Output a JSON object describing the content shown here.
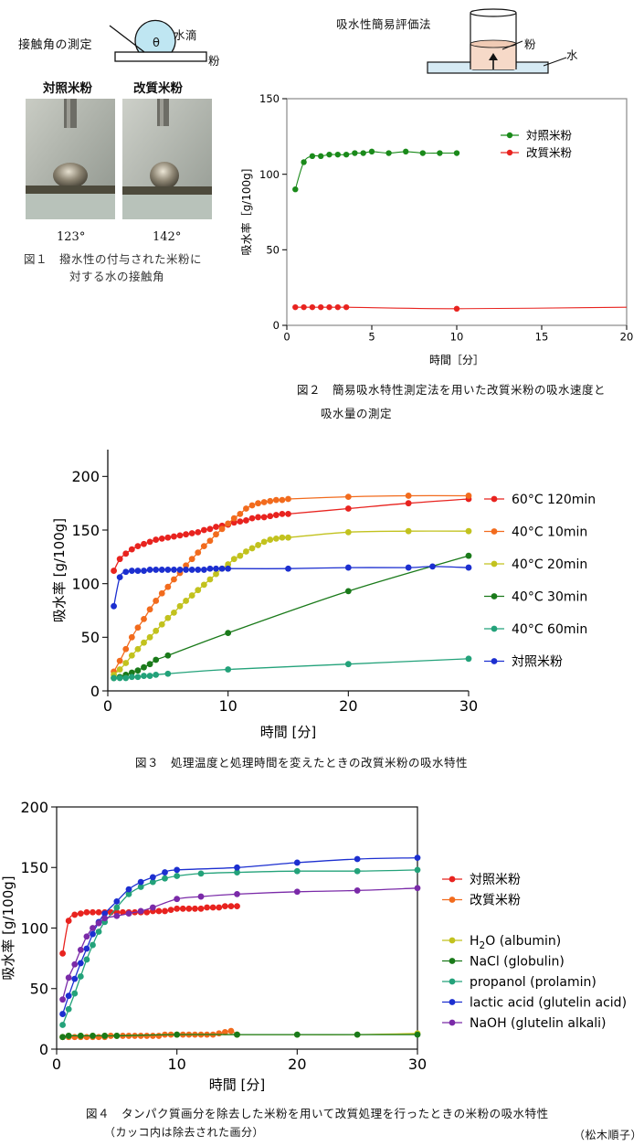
{
  "fig1": {
    "diagram_title": "接触角の測定",
    "droplet_label": "水滴",
    "powder_label": "粉",
    "theta": "θ",
    "photo1_label": "対照米粉",
    "photo2_label": "改質米粉",
    "angle1": "123°",
    "angle2": "142°",
    "caption_line1": "図１　撥水性の付与された米粉に",
    "caption_line2": "対する水の接触角"
  },
  "fig2": {
    "diagram_title": "吸水性簡易評価法",
    "powder_label": "粉",
    "water_label": "水",
    "caption_line1": "図２　簡易吸水特性測定法を用いた改質米粉の吸水速度と",
    "caption_line2": "吸水量の測定"
  },
  "fig3": {
    "caption": "図３　処理温度と処理時間を変えたときの改質米粉の吸水特性"
  },
  "fig4": {
    "caption_line1": "図４　タンパク質画分を除去した米粉を用いて改質処理を行ったときの米粉の吸水特性",
    "caption_line2": "（カッコ内は除去された画分）",
    "author": "（松木順子）"
  },
  "chart_data": [
    {
      "id": "fig2",
      "type": "line",
      "xlabel": "時間［分］",
      "ylabel": "吸水率［g/100g]",
      "xlim": [
        0,
        20
      ],
      "ylim": [
        0,
        150
      ],
      "xticks": [
        0,
        5,
        10,
        15,
        20
      ],
      "yticks": [
        0,
        50,
        100,
        150
      ],
      "legend_position": "top-right",
      "series": [
        {
          "name": "対照米粉",
          "color": "#1a8a1a",
          "x": [
            0.5,
            1,
            1.5,
            2,
            2.5,
            3,
            3.5,
            4,
            4.5,
            5,
            6,
            7,
            8,
            9,
            10
          ],
          "y": [
            90,
            108,
            112,
            112,
            113,
            113,
            113,
            114,
            114,
            115,
            114,
            115,
            114,
            114,
            114
          ]
        },
        {
          "name": "改質米粉",
          "color": "#e8231f",
          "x": [
            0.5,
            1,
            1.5,
            2,
            2.5,
            3,
            3.5,
            10,
            20
          ],
          "y": [
            12,
            12,
            12,
            12,
            12,
            12,
            12,
            11,
            12
          ],
          "markers_until_index": 7
        }
      ]
    },
    {
      "id": "fig3",
      "type": "line",
      "xlabel": "時間 [分]",
      "ylabel": "吸水率 [g/100g]",
      "xlim": [
        0,
        30
      ],
      "ylim": [
        0,
        225
      ],
      "xticks": [
        0,
        10,
        20,
        30
      ],
      "yticks": [
        0,
        50,
        100,
        150,
        200
      ],
      "legend_position": "right",
      "series": [
        {
          "name": "60°C 120min",
          "color": "#e8231f",
          "x": [
            0.5,
            1,
            1.5,
            2,
            2.5,
            3,
            3.5,
            4,
            4.5,
            5,
            5.5,
            6,
            6.5,
            7,
            7.5,
            8,
            8.5,
            9,
            9.5,
            10,
            10.5,
            11,
            11.5,
            12,
            12.5,
            13,
            13.5,
            14,
            14.5,
            15,
            20,
            25,
            30
          ],
          "y": [
            112,
            123,
            128,
            132,
            135,
            137,
            139,
            141,
            142,
            143,
            144,
            145,
            146,
            147,
            148,
            150,
            151,
            153,
            154,
            155,
            157,
            158,
            159,
            161,
            162,
            162,
            163,
            164,
            165,
            165,
            170,
            175,
            179
          ]
        },
        {
          "name": "40°C 10min",
          "color": "#f26b1d",
          "x": [
            0.5,
            1,
            1.5,
            2,
            2.5,
            3,
            3.5,
            4,
            4.5,
            5,
            5.5,
            6,
            6.5,
            7,
            7.5,
            8,
            8.5,
            9,
            9.5,
            10,
            10.5,
            11,
            11.5,
            12,
            12.5,
            13,
            13.5,
            14,
            14.5,
            15,
            20,
            25,
            30
          ],
          "y": [
            18,
            28,
            39,
            50,
            59,
            67,
            76,
            84,
            91,
            97,
            104,
            110,
            117,
            123,
            129,
            135,
            140,
            146,
            151,
            156,
            161,
            165,
            170,
            173,
            175,
            176,
            177,
            178,
            178,
            179,
            181,
            182,
            182
          ]
        },
        {
          "name": "40°C 20min",
          "color": "#c2c21e",
          "x": [
            0.5,
            1,
            1.5,
            2,
            2.5,
            3,
            3.5,
            4,
            4.5,
            5,
            5.5,
            6,
            6.5,
            7,
            7.5,
            8,
            8.5,
            9,
            9.5,
            10,
            10.5,
            11,
            11.5,
            12,
            12.5,
            13,
            13.5,
            14,
            14.5,
            15,
            20,
            25,
            30
          ],
          "y": [
            15,
            20,
            26,
            33,
            39,
            45,
            50,
            56,
            62,
            68,
            73,
            79,
            84,
            89,
            94,
            99,
            104,
            109,
            114,
            118,
            123,
            126,
            130,
            133,
            136,
            139,
            141,
            142,
            143,
            143,
            148,
            149,
            149
          ]
        },
        {
          "name": "40°C 30min",
          "color": "#1a7a1a",
          "x": [
            0.5,
            1,
            1.5,
            2,
            2.5,
            3,
            3.5,
            4,
            5,
            10,
            20,
            30
          ],
          "y": [
            12,
            13,
            15,
            17,
            19,
            22,
            25,
            29,
            33,
            54,
            93,
            126
          ]
        },
        {
          "name": "40°C 60min",
          "color": "#23a27a",
          "x": [
            0.5,
            1,
            1.5,
            2,
            2.5,
            3,
            3.5,
            4,
            5,
            10,
            20,
            30
          ],
          "y": [
            12,
            12,
            12,
            13,
            13,
            14,
            14,
            15,
            16,
            20,
            25,
            30
          ]
        },
        {
          "name": "対照米粉",
          "color": "#1c2fd0",
          "x": [
            0.5,
            1,
            1.5,
            2,
            2.5,
            3,
            3.5,
            4,
            4.5,
            5,
            5.5,
            6,
            6.5,
            7,
            7.5,
            8,
            8.5,
            9,
            9.5,
            10,
            15,
            20,
            25,
            27,
            30
          ],
          "y": [
            79,
            106,
            111,
            112,
            112,
            112,
            113,
            113,
            113,
            113,
            113,
            113,
            113,
            113,
            113,
            113,
            114,
            114,
            114,
            114,
            114,
            115,
            115,
            116,
            115
          ]
        }
      ]
    },
    {
      "id": "fig4",
      "type": "line",
      "xlabel": "時間 [分]",
      "ylabel": "吸水率 [g/100g]",
      "xlim": [
        0,
        30
      ],
      "ylim": [
        0,
        200
      ],
      "xticks": [
        0,
        10,
        20,
        30
      ],
      "yticks": [
        0,
        50,
        100,
        150,
        200
      ],
      "legend_position": "right",
      "series": [
        {
          "name": "対照米粉",
          "color": "#e8231f",
          "x": [
            0.5,
            1,
            1.5,
            2,
            2.5,
            3,
            3.5,
            4,
            4.5,
            5,
            5.5,
            6,
            6.5,
            7,
            7.5,
            8,
            8.5,
            9,
            9.5,
            10,
            10.5,
            11,
            11.5,
            12,
            12.5,
            13,
            13.5,
            14,
            14.5,
            15
          ],
          "y": [
            79,
            106,
            111,
            112,
            113,
            113,
            113,
            113,
            113,
            113,
            113,
            113,
            113,
            113,
            113,
            114,
            114,
            114,
            115,
            116,
            116,
            116,
            116,
            116,
            117,
            117,
            117,
            118,
            118,
            118
          ]
        },
        {
          "name": "改質米粉",
          "color": "#f26b1d",
          "x": [
            0.5,
            1,
            1.5,
            2,
            2.5,
            3,
            3.5,
            4,
            4.5,
            5,
            5.5,
            6,
            6.5,
            7,
            7.5,
            8,
            8.5,
            9,
            9.5,
            10,
            10.5,
            11,
            11.5,
            12,
            12.5,
            13,
            13.5,
            14,
            14.5,
            15
          ],
          "y": [
            10,
            10,
            10,
            10,
            10,
            10,
            10,
            10,
            11,
            11,
            11,
            11,
            11,
            11,
            11,
            11,
            11,
            12,
            12,
            12,
            12,
            12,
            12,
            12,
            12,
            12,
            13,
            14,
            15,
            12
          ]
        },
        {
          "name": "H<sub>2</sub>O (albumin)",
          "color": "#c2c21e",
          "x": [
            0.5,
            1,
            2,
            3,
            4,
            5,
            10,
            15,
            20,
            25,
            30
          ],
          "y": [
            10,
            11,
            11,
            11,
            11,
            11,
            12,
            12,
            12,
            12,
            13
          ]
        },
        {
          "name": "NaCl (globulin)",
          "color": "#1a7a1a",
          "x": [
            0.5,
            1,
            2,
            3,
            4,
            5,
            10,
            15,
            20,
            25,
            30
          ],
          "y": [
            10,
            11,
            11,
            11,
            11,
            11,
            12,
            12,
            12,
            12,
            12
          ]
        },
        {
          "name": "propanol (prolamin)",
          "color": "#23a27a",
          "x": [
            0.5,
            1,
            1.5,
            2,
            2.5,
            3,
            3.5,
            4,
            5,
            6,
            7,
            8,
            9,
            10,
            12,
            15,
            20,
            25,
            30
          ],
          "y": [
            20,
            33,
            46,
            60,
            74,
            86,
            97,
            105,
            117,
            128,
            134,
            138,
            141,
            143,
            145,
            146,
            147,
            147,
            148
          ]
        },
        {
          "name": "lactic acid (glutelin acid)",
          "color": "#1c2fd0",
          "x": [
            0.5,
            1,
            1.5,
            2,
            2.5,
            3,
            3.5,
            4,
            5,
            6,
            7,
            8,
            9,
            10,
            15,
            20,
            25,
            30
          ],
          "y": [
            29,
            44,
            58,
            71,
            83,
            95,
            105,
            112,
            122,
            132,
            138,
            142,
            146,
            148,
            150,
            154,
            157,
            158
          ]
        },
        {
          "name": "NaOH (glutelin alkali)",
          "color": "#7a2aa8",
          "x": [
            0.5,
            1,
            1.5,
            2,
            2.5,
            3,
            3.5,
            4,
            5,
            6,
            7,
            8,
            10,
            12,
            15,
            20,
            25,
            30
          ],
          "y": [
            41,
            59,
            70,
            82,
            93,
            100,
            104,
            108,
            110,
            112,
            114,
            117,
            124,
            126,
            128,
            130,
            131,
            133
          ]
        }
      ]
    }
  ]
}
